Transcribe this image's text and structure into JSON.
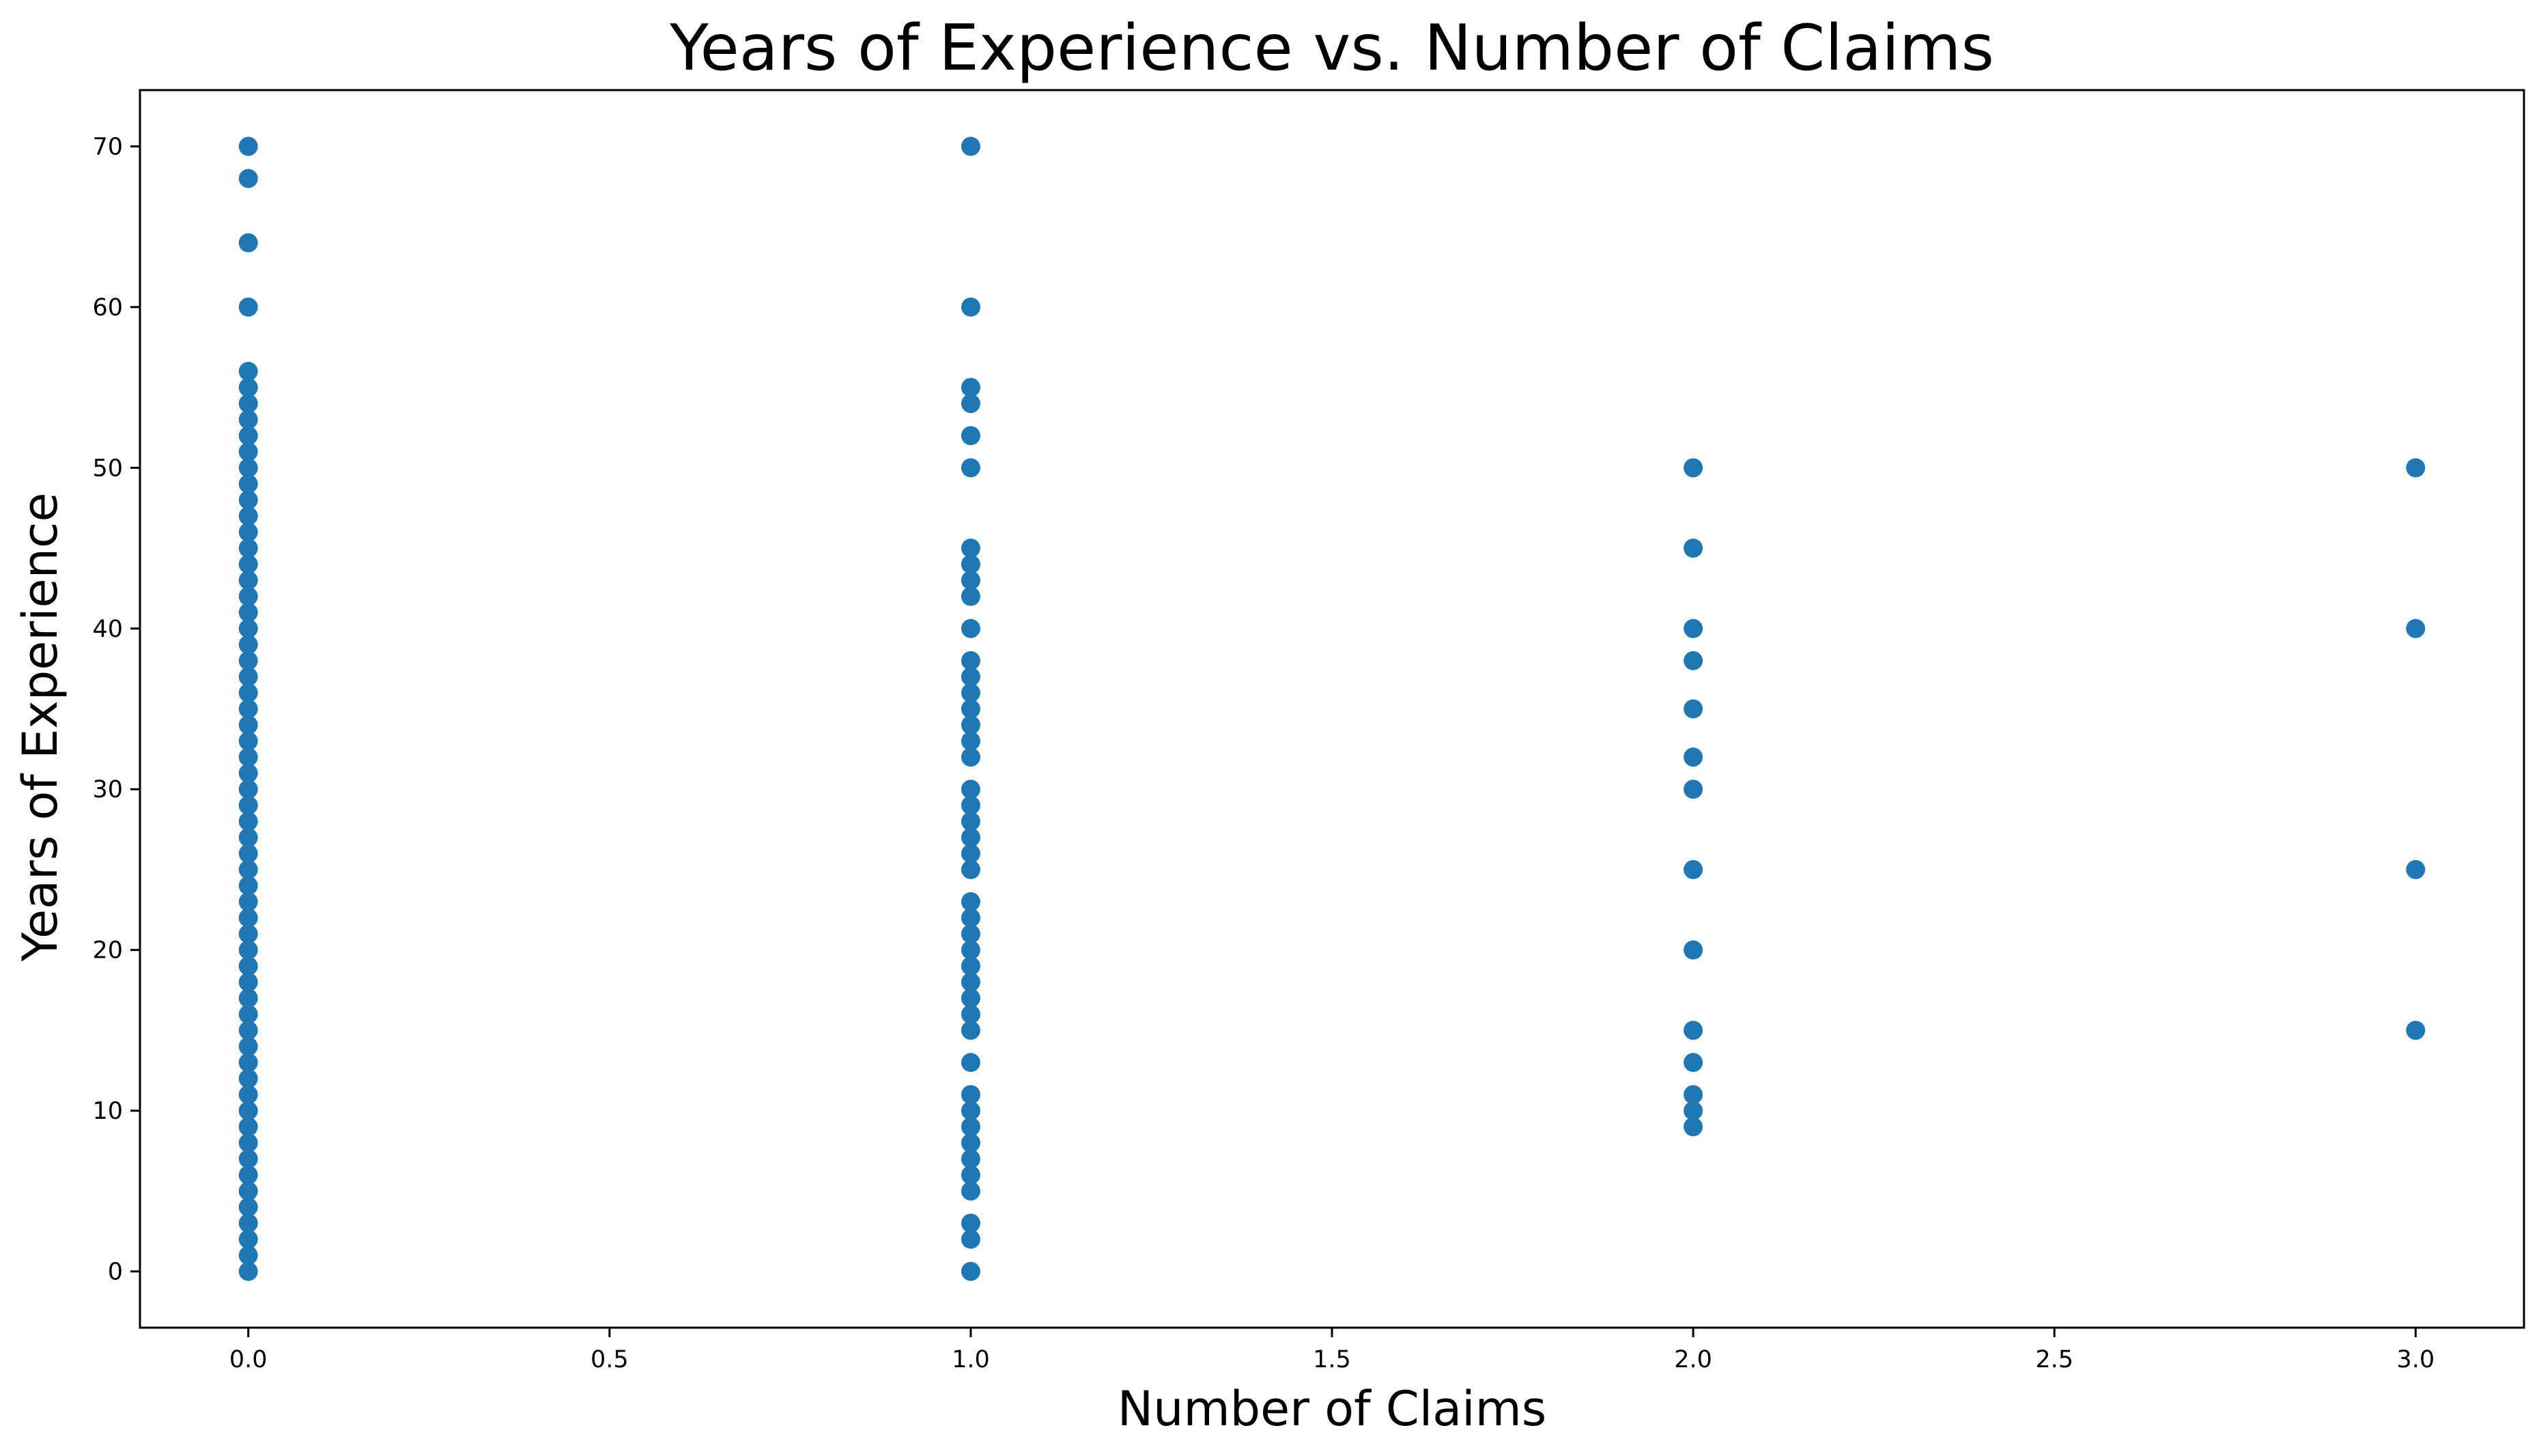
{
  "chart_data": {
    "type": "scatter",
    "title": "Years of Experience vs. Number of Claims",
    "xlabel": "Number of Claims",
    "ylabel": "Years of Experience",
    "xlim": [
      -0.15,
      3.15
    ],
    "ylim": [
      -3.5,
      73.5
    ],
    "x_ticks": [
      0.0,
      0.5,
      1.0,
      1.5,
      2.0,
      2.5,
      3.0
    ],
    "x_tick_labels": [
      "0.0",
      "0.5",
      "1.0",
      "1.5",
      "2.0",
      "2.5",
      "3.0"
    ],
    "y_ticks": [
      0,
      10,
      20,
      30,
      40,
      50,
      60,
      70
    ],
    "y_tick_labels": [
      "0",
      "10",
      "20",
      "30",
      "40",
      "50",
      "60",
      "70"
    ],
    "grid": false,
    "marker_color": "#1f77b4",
    "series": [
      {
        "points": [
          {
            "x": 0,
            "y": 0
          },
          {
            "x": 0,
            "y": 1
          },
          {
            "x": 0,
            "y": 2
          },
          {
            "x": 0,
            "y": 3
          },
          {
            "x": 0,
            "y": 4
          },
          {
            "x": 0,
            "y": 5
          },
          {
            "x": 0,
            "y": 6
          },
          {
            "x": 0,
            "y": 7
          },
          {
            "x": 0,
            "y": 8
          },
          {
            "x": 0,
            "y": 9
          },
          {
            "x": 0,
            "y": 10
          },
          {
            "x": 0,
            "y": 11
          },
          {
            "x": 0,
            "y": 12
          },
          {
            "x": 0,
            "y": 13
          },
          {
            "x": 0,
            "y": 14
          },
          {
            "x": 0,
            "y": 15
          },
          {
            "x": 0,
            "y": 16
          },
          {
            "x": 0,
            "y": 17
          },
          {
            "x": 0,
            "y": 18
          },
          {
            "x": 0,
            "y": 19
          },
          {
            "x": 0,
            "y": 20
          },
          {
            "x": 0,
            "y": 21
          },
          {
            "x": 0,
            "y": 22
          },
          {
            "x": 0,
            "y": 23
          },
          {
            "x": 0,
            "y": 24
          },
          {
            "x": 0,
            "y": 25
          },
          {
            "x": 0,
            "y": 26
          },
          {
            "x": 0,
            "y": 27
          },
          {
            "x": 0,
            "y": 28
          },
          {
            "x": 0,
            "y": 29
          },
          {
            "x": 0,
            "y": 30
          },
          {
            "x": 0,
            "y": 31
          },
          {
            "x": 0,
            "y": 32
          },
          {
            "x": 0,
            "y": 33
          },
          {
            "x": 0,
            "y": 34
          },
          {
            "x": 0,
            "y": 35
          },
          {
            "x": 0,
            "y": 36
          },
          {
            "x": 0,
            "y": 37
          },
          {
            "x": 0,
            "y": 38
          },
          {
            "x": 0,
            "y": 39
          },
          {
            "x": 0,
            "y": 40
          },
          {
            "x": 0,
            "y": 41
          },
          {
            "x": 0,
            "y": 42
          },
          {
            "x": 0,
            "y": 43
          },
          {
            "x": 0,
            "y": 44
          },
          {
            "x": 0,
            "y": 45
          },
          {
            "x": 0,
            "y": 46
          },
          {
            "x": 0,
            "y": 47
          },
          {
            "x": 0,
            "y": 48
          },
          {
            "x": 0,
            "y": 49
          },
          {
            "x": 0,
            "y": 50
          },
          {
            "x": 0,
            "y": 51
          },
          {
            "x": 0,
            "y": 52
          },
          {
            "x": 0,
            "y": 53
          },
          {
            "x": 0,
            "y": 54
          },
          {
            "x": 0,
            "y": 55
          },
          {
            "x": 0,
            "y": 56
          },
          {
            "x": 0,
            "y": 60
          },
          {
            "x": 0,
            "y": 64
          },
          {
            "x": 0,
            "y": 68
          },
          {
            "x": 0,
            "y": 70
          },
          {
            "x": 1,
            "y": 0
          },
          {
            "x": 1,
            "y": 2
          },
          {
            "x": 1,
            "y": 3
          },
          {
            "x": 1,
            "y": 5
          },
          {
            "x": 1,
            "y": 6
          },
          {
            "x": 1,
            "y": 7
          },
          {
            "x": 1,
            "y": 8
          },
          {
            "x": 1,
            "y": 9
          },
          {
            "x": 1,
            "y": 10
          },
          {
            "x": 1,
            "y": 11
          },
          {
            "x": 1,
            "y": 13
          },
          {
            "x": 1,
            "y": 15
          },
          {
            "x": 1,
            "y": 16
          },
          {
            "x": 1,
            "y": 17
          },
          {
            "x": 1,
            "y": 18
          },
          {
            "x": 1,
            "y": 19
          },
          {
            "x": 1,
            "y": 20
          },
          {
            "x": 1,
            "y": 21
          },
          {
            "x": 1,
            "y": 22
          },
          {
            "x": 1,
            "y": 23
          },
          {
            "x": 1,
            "y": 25
          },
          {
            "x": 1,
            "y": 26
          },
          {
            "x": 1,
            "y": 27
          },
          {
            "x": 1,
            "y": 28
          },
          {
            "x": 1,
            "y": 29
          },
          {
            "x": 1,
            "y": 30
          },
          {
            "x": 1,
            "y": 32
          },
          {
            "x": 1,
            "y": 33
          },
          {
            "x": 1,
            "y": 34
          },
          {
            "x": 1,
            "y": 35
          },
          {
            "x": 1,
            "y": 36
          },
          {
            "x": 1,
            "y": 37
          },
          {
            "x": 1,
            "y": 38
          },
          {
            "x": 1,
            "y": 40
          },
          {
            "x": 1,
            "y": 42
          },
          {
            "x": 1,
            "y": 43
          },
          {
            "x": 1,
            "y": 44
          },
          {
            "x": 1,
            "y": 45
          },
          {
            "x": 1,
            "y": 50
          },
          {
            "x": 1,
            "y": 52
          },
          {
            "x": 1,
            "y": 54
          },
          {
            "x": 1,
            "y": 55
          },
          {
            "x": 1,
            "y": 60
          },
          {
            "x": 1,
            "y": 70
          },
          {
            "x": 2,
            "y": 9
          },
          {
            "x": 2,
            "y": 10
          },
          {
            "x": 2,
            "y": 11
          },
          {
            "x": 2,
            "y": 13
          },
          {
            "x": 2,
            "y": 15
          },
          {
            "x": 2,
            "y": 20
          },
          {
            "x": 2,
            "y": 25
          },
          {
            "x": 2,
            "y": 30
          },
          {
            "x": 2,
            "y": 32
          },
          {
            "x": 2,
            "y": 35
          },
          {
            "x": 2,
            "y": 38
          },
          {
            "x": 2,
            "y": 40
          },
          {
            "x": 2,
            "y": 45
          },
          {
            "x": 2,
            "y": 50
          },
          {
            "x": 3,
            "y": 15
          },
          {
            "x": 3,
            "y": 25
          },
          {
            "x": 3,
            "y": 40
          },
          {
            "x": 3,
            "y": 50
          }
        ]
      }
    ]
  }
}
